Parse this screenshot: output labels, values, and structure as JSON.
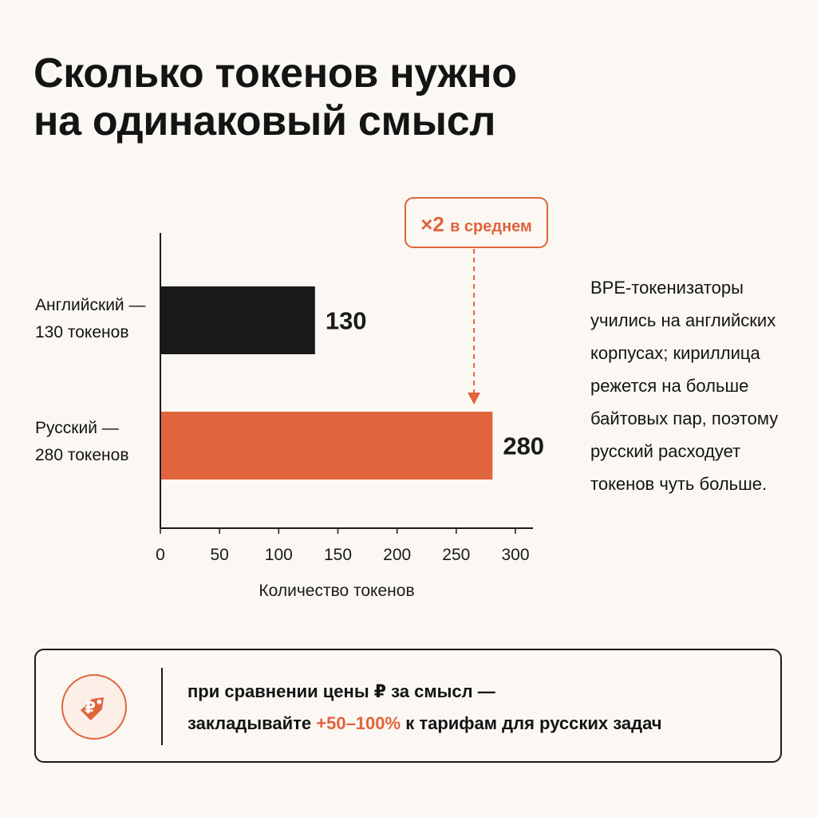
{
  "title": {
    "line1": "Сколько токенов нужно",
    "line2": "на одинаковый смысл"
  },
  "chart_data": {
    "type": "bar",
    "orientation": "horizontal",
    "categories": [
      "Английский",
      "Русский"
    ],
    "category_labels": [
      {
        "line1": "Английский —",
        "line2": "130 токенов"
      },
      {
        "line1": "Русский —",
        "line2": "280 токенов"
      }
    ],
    "values": [
      130,
      280
    ],
    "data_labels": [
      "130",
      "280"
    ],
    "colors": [
      "#1a1a1a",
      "#e0643c"
    ],
    "xlabel": "Количество токенов",
    "xlim": [
      0,
      300
    ],
    "xticks": [
      "0",
      "50",
      "100",
      "150",
      "200",
      "250",
      "300"
    ],
    "grid": false,
    "annotation": {
      "text_strong": "×2",
      "text": "в среднем",
      "points_to_value": 265,
      "color": "#e0643c"
    }
  },
  "note": "BPE-токенизаторы учились на английских корпусах; кириллица режется на больше байтовых пар, поэтому русский расходует токенов чуть больше.",
  "callout": {
    "icon": "ruble-price-tag-icon",
    "line1": "при сравнении цены ₽ за смысл —",
    "line2_before": "закладывайте ",
    "line2_accent": "+50–100%",
    "line2_after": " к тарифам для русских задач",
    "accent_color": "#e0643c"
  }
}
